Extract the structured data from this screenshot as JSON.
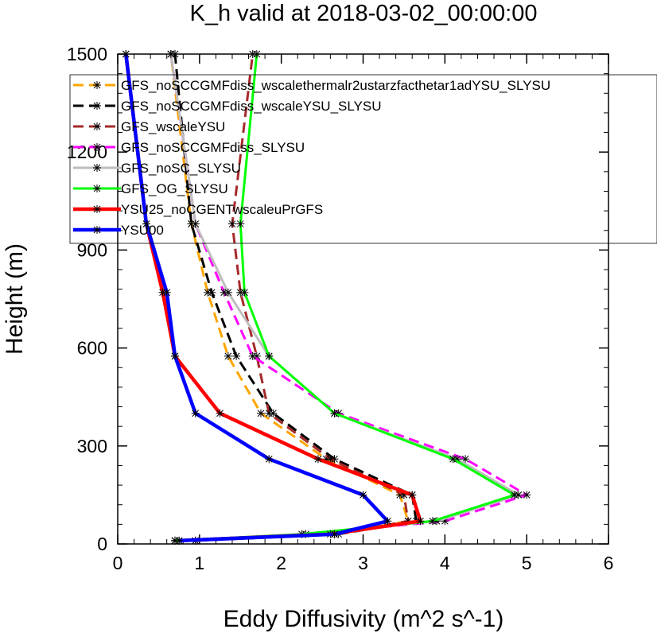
{
  "chart_data": {
    "type": "line",
    "title": "K_h valid at 2018-03-02_00:00:00",
    "xlabel": "Eddy Diffusivity (m^2 s^-1)",
    "ylabel": "Height (m)",
    "xlim": [
      0,
      6
    ],
    "ylim": [
      0,
      1500
    ],
    "xticks": [
      "0",
      "1",
      "2",
      "3",
      "4",
      "5",
      "6"
    ],
    "yticks": [
      "0",
      "300",
      "600",
      "900",
      "1200",
      "1500"
    ],
    "legend_position": "top-right",
    "series": [
      {
        "name": "GFS_noSCCGMFdiss_wscalethermalr2ustarzfacthetar1adYSU_SLYSU",
        "color": "#ffa500",
        "dash": "dashed",
        "x": [
          0.7,
          2.65,
          3.55,
          3.45,
          2.55,
          1.75,
          1.35,
          1.1,
          0.9,
          0.65
        ],
        "y": [
          10,
          30,
          70,
          150,
          260,
          400,
          575,
          770,
          980,
          1500
        ]
      },
      {
        "name": "GFS_noSCCGMFdiss_wscaleYSU_SLYSU",
        "color": "#000000",
        "dash": "dashed",
        "x": [
          0.95,
          2.7,
          3.65,
          3.6,
          2.65,
          1.9,
          1.45,
          1.15,
          0.9,
          0.7
        ],
        "y": [
          10,
          30,
          70,
          150,
          260,
          400,
          575,
          770,
          980,
          1500
        ]
      },
      {
        "name": "GFS_wscaleYSU",
        "color": "#a52a2a",
        "dash": "dashed",
        "x": [
          0.95,
          2.65,
          3.55,
          3.5,
          2.6,
          1.85,
          1.7,
          1.5,
          1.4,
          1.65
        ],
        "y": [
          10,
          30,
          70,
          150,
          260,
          400,
          575,
          770,
          980,
          1500
        ]
      },
      {
        "name": "GFS_noSCCGMFdiss_SLYSU",
        "color": "#ff00ff",
        "dash": "dashed",
        "x": [
          0.7,
          2.3,
          4.0,
          5.0,
          4.25,
          2.7,
          1.65,
          1.3,
          0.95,
          0.65
        ],
        "y": [
          10,
          30,
          70,
          150,
          260,
          400,
          575,
          770,
          980,
          1500
        ]
      },
      {
        "name": "GFS_noSC_SLYSU",
        "color": "#bebebe",
        "dash": "solid",
        "x": [
          0.7,
          2.3,
          3.9,
          4.9,
          4.15,
          2.65,
          1.85,
          1.35,
          0.95,
          0.65
        ],
        "y": [
          10,
          30,
          70,
          150,
          260,
          400,
          575,
          770,
          980,
          1500
        ]
      },
      {
        "name": "GFS_OG_SLYSU",
        "color": "#00ff00",
        "dash": "solid",
        "x": [
          0.7,
          2.25,
          3.85,
          4.85,
          4.1,
          2.65,
          1.85,
          1.55,
          1.5,
          1.7
        ],
        "y": [
          10,
          30,
          70,
          150,
          260,
          400,
          575,
          770,
          980,
          1500
        ]
      },
      {
        "name": "YSU25_noCGENTwscaleuPrGFS",
        "color": "#ff0000",
        "dash": "solid",
        "x": [
          0.75,
          2.6,
          3.7,
          3.6,
          2.45,
          1.25,
          0.7,
          0.55,
          0.35,
          0.1
        ],
        "y": [
          10,
          30,
          70,
          150,
          260,
          400,
          575,
          770,
          980,
          1500
        ]
      },
      {
        "name": "YSU00",
        "color": "#0000ff",
        "dash": "solid",
        "x": [
          0.75,
          2.65,
          3.3,
          3.0,
          1.85,
          0.95,
          0.7,
          0.6,
          0.35,
          0.1
        ],
        "y": [
          10,
          30,
          70,
          150,
          260,
          400,
          575,
          770,
          980,
          1500
        ]
      }
    ]
  }
}
